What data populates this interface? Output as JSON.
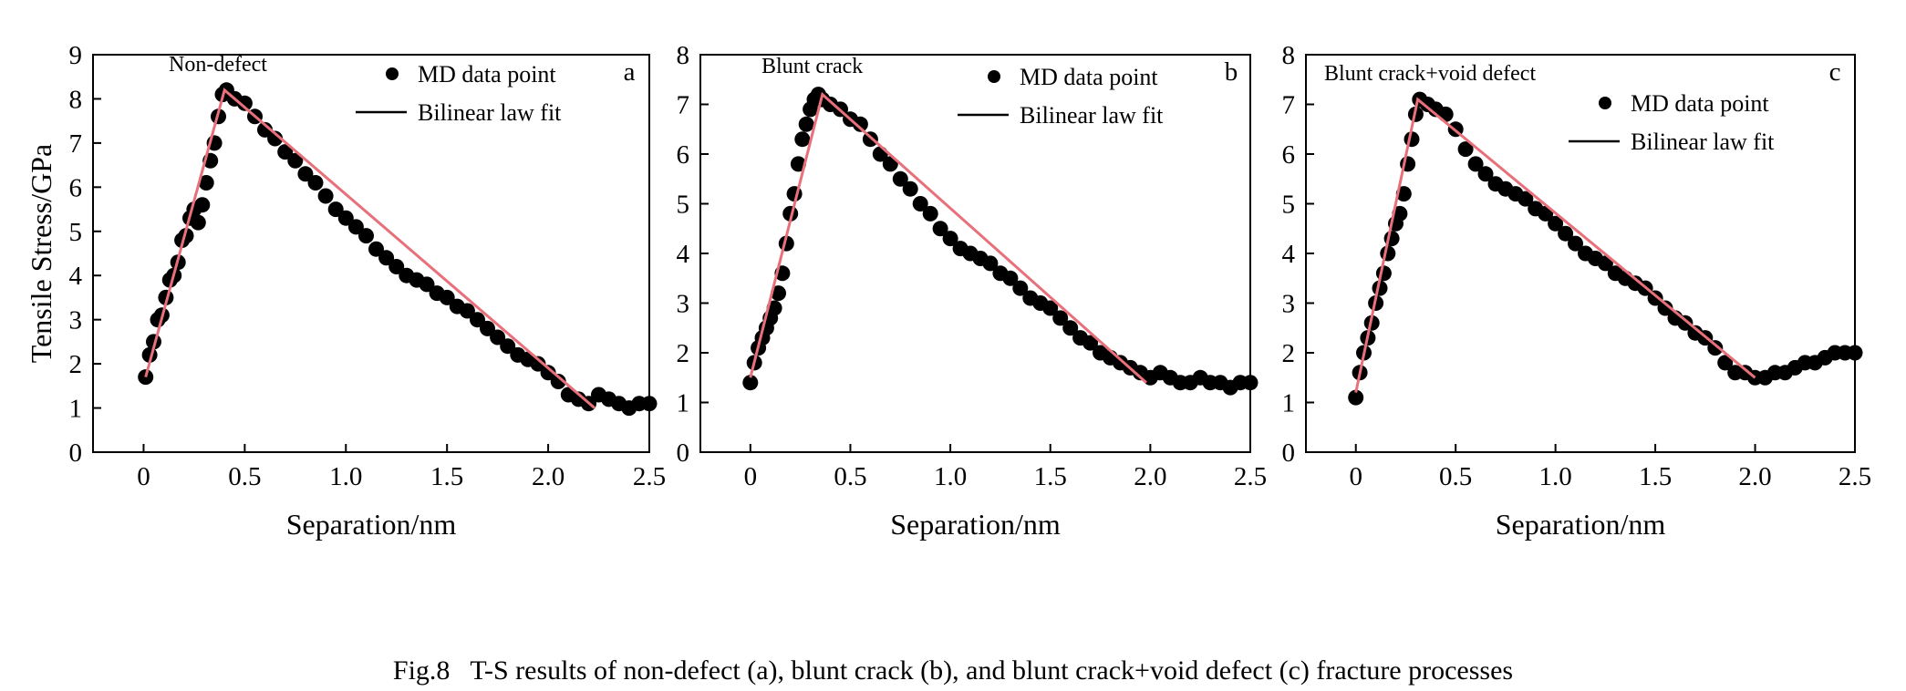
{
  "caption": {
    "figure_number": "Fig.8",
    "text": "T-S results of non-defect (a), blunt crack (b), and blunt crack+void defect (c) fracture processes"
  },
  "colors": {
    "fit_line": "#e8707a",
    "points": "#000000",
    "axes": "#000000"
  },
  "chart_data": [
    {
      "type": "scatter",
      "panel_label": "a",
      "annotation": "Non-defect",
      "xlabel": "Separation/nm",
      "ylabel": "Tensile Stress/GPa",
      "xlim": [
        -0.25,
        2.5
      ],
      "ylim": [
        0,
        9
      ],
      "xticks": [
        "0",
        "0.5",
        "1.0",
        "1.5",
        "2.0",
        "2.5"
      ],
      "yticks": [
        "0",
        "1",
        "2",
        "3",
        "4",
        "5",
        "6",
        "7",
        "8",
        "9"
      ],
      "grid": false,
      "legend_position": "top-right",
      "series": [
        {
          "name": "MD data point",
          "kind": "scatter",
          "x": [
            0.01,
            0.03,
            0.05,
            0.07,
            0.09,
            0.11,
            0.13,
            0.15,
            0.17,
            0.19,
            0.21,
            0.23,
            0.25,
            0.27,
            0.29,
            0.31,
            0.33,
            0.35,
            0.37,
            0.39,
            0.41,
            0.45,
            0.5,
            0.55,
            0.6,
            0.65,
            0.7,
            0.75,
            0.8,
            0.85,
            0.9,
            0.95,
            1.0,
            1.05,
            1.1,
            1.15,
            1.2,
            1.25,
            1.3,
            1.35,
            1.4,
            1.45,
            1.5,
            1.55,
            1.6,
            1.65,
            1.7,
            1.75,
            1.8,
            1.85,
            1.9,
            1.95,
            2.0,
            2.05,
            2.1,
            2.15,
            2.2,
            2.25,
            2.3,
            2.35,
            2.4,
            2.45,
            2.5
          ],
          "y": [
            1.7,
            2.2,
            2.5,
            3.0,
            3.1,
            3.5,
            3.9,
            4.0,
            4.3,
            4.8,
            4.9,
            5.3,
            5.5,
            5.2,
            5.6,
            6.1,
            6.6,
            7.0,
            7.6,
            8.1,
            8.2,
            8.0,
            7.9,
            7.6,
            7.3,
            7.1,
            6.8,
            6.6,
            6.3,
            6.1,
            5.8,
            5.5,
            5.3,
            5.1,
            4.9,
            4.6,
            4.4,
            4.2,
            4.0,
            3.9,
            3.8,
            3.6,
            3.5,
            3.3,
            3.2,
            3.0,
            2.8,
            2.6,
            2.4,
            2.2,
            2.1,
            2.0,
            1.8,
            1.6,
            1.3,
            1.2,
            1.1,
            1.3,
            1.2,
            1.1,
            1.0,
            1.1,
            1.1
          ]
        },
        {
          "name": "Bilinear law fit",
          "kind": "line",
          "x": [
            0.01,
            0.4,
            2.23
          ],
          "y": [
            1.7,
            8.2,
            1.0
          ]
        }
      ]
    },
    {
      "type": "scatter",
      "panel_label": "b",
      "annotation": "Blunt crack",
      "xlabel": "Separation/nm",
      "ylabel": "",
      "xlim": [
        -0.25,
        2.5
      ],
      "ylim": [
        0,
        8
      ],
      "xticks": [
        "0",
        "0.5",
        "1.0",
        "1.5",
        "2.0",
        "2.5"
      ],
      "yticks": [
        "0",
        "1",
        "2",
        "3",
        "4",
        "5",
        "6",
        "7",
        "8"
      ],
      "grid": false,
      "legend_position": "top-right",
      "series": [
        {
          "name": "MD data point",
          "kind": "scatter",
          "x": [
            0.0,
            0.02,
            0.04,
            0.06,
            0.08,
            0.1,
            0.12,
            0.14,
            0.16,
            0.18,
            0.2,
            0.22,
            0.24,
            0.26,
            0.28,
            0.3,
            0.32,
            0.34,
            0.36,
            0.4,
            0.45,
            0.5,
            0.55,
            0.6,
            0.65,
            0.7,
            0.75,
            0.8,
            0.85,
            0.9,
            0.95,
            1.0,
            1.05,
            1.1,
            1.15,
            1.2,
            1.25,
            1.3,
            1.35,
            1.4,
            1.45,
            1.5,
            1.55,
            1.6,
            1.65,
            1.7,
            1.75,
            1.8,
            1.85,
            1.9,
            1.95,
            2.0,
            2.05,
            2.1,
            2.15,
            2.2,
            2.25,
            2.3,
            2.35,
            2.4,
            2.45,
            2.5
          ],
          "y": [
            1.4,
            1.8,
            2.1,
            2.3,
            2.5,
            2.7,
            2.9,
            3.2,
            3.6,
            4.2,
            4.8,
            5.2,
            5.8,
            6.3,
            6.6,
            6.9,
            7.1,
            7.2,
            7.1,
            7.0,
            6.9,
            6.7,
            6.6,
            6.3,
            6.0,
            5.8,
            5.5,
            5.3,
            5.0,
            4.8,
            4.5,
            4.3,
            4.1,
            4.0,
            3.9,
            3.8,
            3.6,
            3.5,
            3.3,
            3.1,
            3.0,
            2.9,
            2.7,
            2.5,
            2.3,
            2.2,
            2.0,
            1.9,
            1.8,
            1.7,
            1.6,
            1.5,
            1.6,
            1.5,
            1.4,
            1.4,
            1.5,
            1.4,
            1.4,
            1.3,
            1.4,
            1.4
          ]
        },
        {
          "name": "Bilinear law fit",
          "kind": "line",
          "x": [
            0.0,
            0.36,
            1.98
          ],
          "y": [
            1.5,
            7.2,
            1.4
          ]
        }
      ]
    },
    {
      "type": "scatter",
      "panel_label": "c",
      "annotation": "Blunt crack+void defect",
      "xlabel": "Separation/nm",
      "ylabel": "",
      "xlim": [
        -0.25,
        2.5
      ],
      "ylim": [
        0,
        8
      ],
      "xticks": [
        "0",
        "0.5",
        "1.0",
        "1.5",
        "2.0",
        "2.5"
      ],
      "yticks": [
        "0",
        "1",
        "2",
        "3",
        "4",
        "5",
        "6",
        "7",
        "8"
      ],
      "grid": false,
      "legend_position": "top-right",
      "series": [
        {
          "name": "MD data point",
          "kind": "scatter",
          "x": [
            0.0,
            0.02,
            0.04,
            0.06,
            0.08,
            0.1,
            0.12,
            0.14,
            0.16,
            0.18,
            0.2,
            0.22,
            0.24,
            0.26,
            0.28,
            0.3,
            0.32,
            0.36,
            0.4,
            0.45,
            0.5,
            0.55,
            0.6,
            0.65,
            0.7,
            0.75,
            0.8,
            0.85,
            0.9,
            0.95,
            1.0,
            1.05,
            1.1,
            1.15,
            1.2,
            1.25,
            1.3,
            1.35,
            1.4,
            1.45,
            1.5,
            1.55,
            1.6,
            1.65,
            1.7,
            1.75,
            1.8,
            1.85,
            1.9,
            1.95,
            2.0,
            2.05,
            2.1,
            2.15,
            2.2,
            2.25,
            2.3,
            2.35,
            2.4,
            2.45,
            2.5
          ],
          "y": [
            1.1,
            1.6,
            2.0,
            2.3,
            2.6,
            3.0,
            3.3,
            3.6,
            4.0,
            4.3,
            4.6,
            4.8,
            5.2,
            5.8,
            6.3,
            6.8,
            7.1,
            7.0,
            6.9,
            6.8,
            6.5,
            6.1,
            5.8,
            5.6,
            5.4,
            5.3,
            5.2,
            5.1,
            4.9,
            4.8,
            4.6,
            4.4,
            4.2,
            4.0,
            3.9,
            3.8,
            3.6,
            3.5,
            3.4,
            3.3,
            3.1,
            2.9,
            2.7,
            2.6,
            2.4,
            2.3,
            2.1,
            1.8,
            1.6,
            1.6,
            1.5,
            1.5,
            1.6,
            1.6,
            1.7,
            1.8,
            1.8,
            1.9,
            2.0,
            2.0,
            2.0
          ]
        },
        {
          "name": "Bilinear law fit",
          "kind": "line",
          "x": [
            0.0,
            0.31,
            2.0
          ],
          "y": [
            1.2,
            7.1,
            1.5
          ]
        }
      ]
    }
  ]
}
